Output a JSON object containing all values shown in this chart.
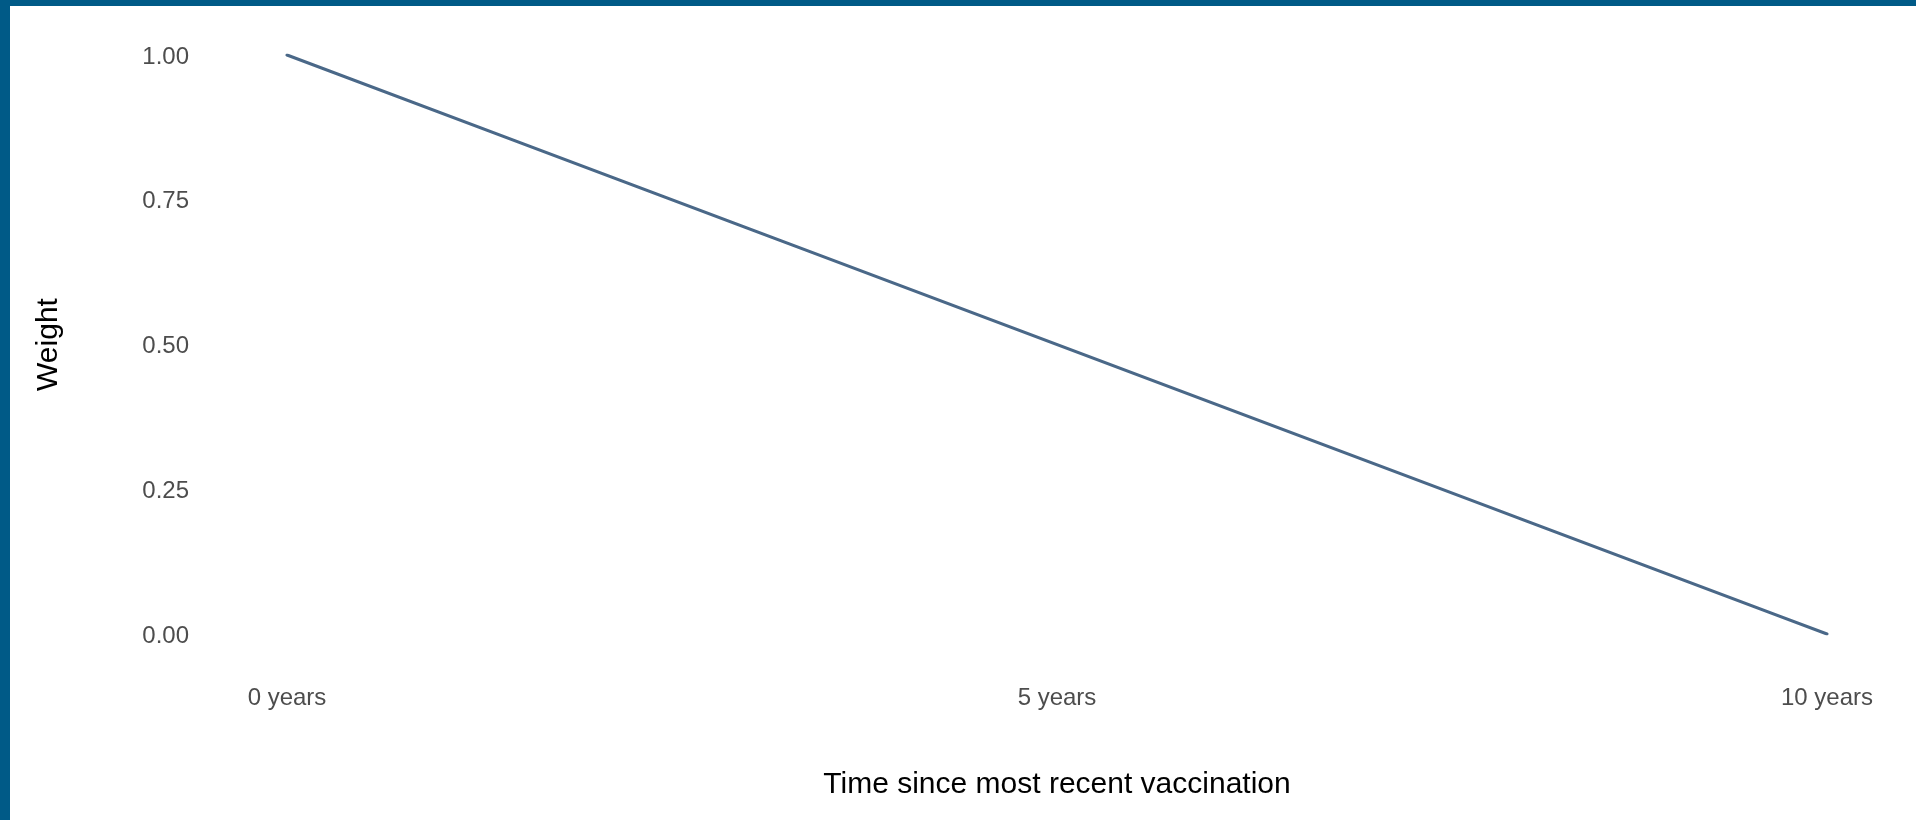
{
  "chart_data": {
    "type": "line",
    "xlabel": "Time since most recent vaccination",
    "ylabel": "Weight",
    "x": [
      0,
      10
    ],
    "series": [
      {
        "color": "#4a6888",
        "values": [
          1,
          0
        ]
      }
    ],
    "xlim": [
      0,
      10
    ],
    "xticks": [
      {
        "value": 0,
        "label": "0 years"
      },
      {
        "value": 5,
        "label": "5 years"
      },
      {
        "value": 10,
        "label": "10 years"
      }
    ],
    "ylim": [
      0,
      1
    ],
    "yticks": [
      {
        "value": 0,
        "label": "0.00"
      },
      {
        "value": 0.25,
        "label": "0.25"
      },
      {
        "value": 0.5,
        "label": "0.50"
      },
      {
        "value": 0.75,
        "label": "0.75"
      },
      {
        "value": 1,
        "label": "1.00"
      }
    ],
    "grid": false,
    "marker": "none",
    "line_style": "solid"
  }
}
